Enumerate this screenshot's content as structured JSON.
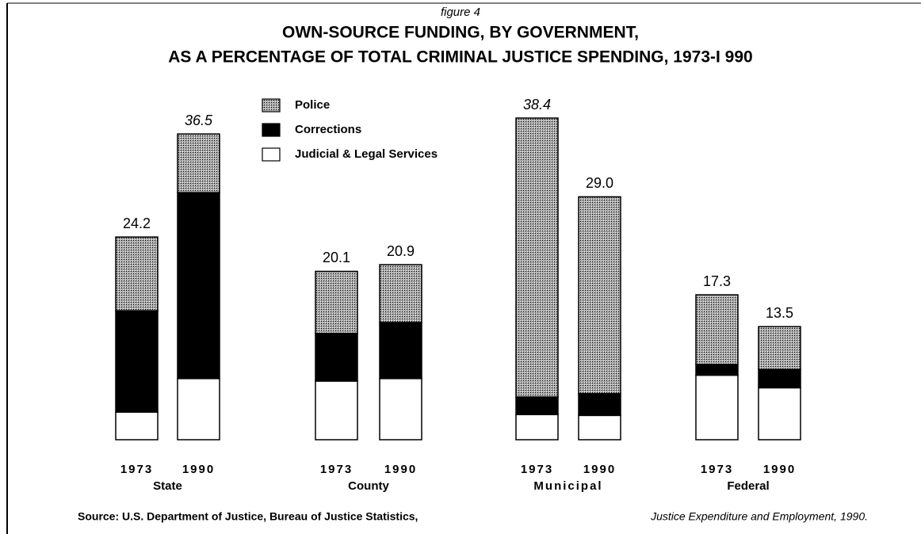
{
  "chart_data": {
    "type": "stacked_bar",
    "label": "figure 4",
    "title": "OWN-SOURCE FUNDING, BY GOVERNMENT,",
    "subtitle": "AS A PERCENTAGE OF TOTAL CRIMINAL JUSTICE SPENDING, 1973-I 990",
    "groups": [
      "State",
      "County",
      "Municipal",
      "Federal"
    ],
    "categories": [
      "1973",
      "1990",
      "1973",
      "1990",
      "1973",
      "1990",
      "1973",
      "1990"
    ],
    "series": [
      {
        "name": "Judicial & Legal Services",
        "color": "#ffffff",
        "values": [
          3.3,
          7.3,
          7.0,
          7.3,
          3.0,
          2.9,
          7.7,
          6.2
        ]
      },
      {
        "name": "Corrections",
        "color": "#000000",
        "values": [
          12.1,
          22.2,
          5.7,
          6.7,
          2.1,
          2.6,
          1.3,
          2.2
        ]
      },
      {
        "name": "Police",
        "color": "#a8a8a8",
        "values": [
          8.8,
          7.0,
          7.4,
          6.9,
          33.3,
          23.5,
          8.3,
          5.1
        ]
      }
    ],
    "totals": [
      24.2,
      36.5,
      20.1,
      20.9,
      38.4,
      29.0,
      17.3,
      13.5
    ],
    "total_labels": [
      "24.2",
      "36.5",
      "20.1",
      "20.9",
      "38.4",
      "29.0",
      "17.3",
      "13.5"
    ],
    "source": "Source: U.S. Department of Justice, Bureau of Justice Statistics,",
    "source_title": "Justice Expenditure and Employment, 1990."
  }
}
